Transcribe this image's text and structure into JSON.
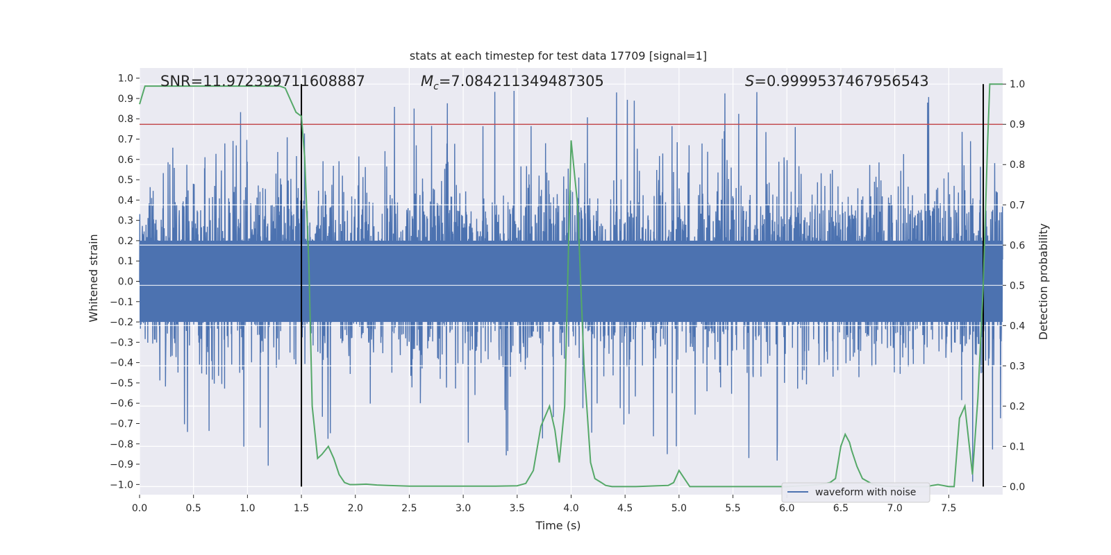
{
  "chart_data": {
    "type": "line",
    "title": "stats at each timestep for test data 17709 [signal=1]",
    "xlabel": "Time (s)",
    "ylabel": "Whitened strain",
    "y2label": "Detection probability",
    "xlim": [
      0.0,
      8.0
    ],
    "ylim": [
      -1.05,
      1.05
    ],
    "y2lim": [
      -0.02,
      1.04
    ],
    "xticks": [
      0.0,
      0.5,
      1.0,
      1.5,
      2.0,
      2.5,
      3.0,
      3.5,
      4.0,
      4.5,
      5.0,
      5.5,
      6.0,
      6.5,
      7.0,
      7.5
    ],
    "xtick_labels": [
      "0.0",
      "0.5",
      "1.0",
      "1.5",
      "2.0",
      "2.5",
      "3.0",
      "3.5",
      "4.0",
      "4.5",
      "5.0",
      "5.5",
      "6.0",
      "6.5",
      "7.0",
      "7.5"
    ],
    "yticks": [
      1.0,
      0.9,
      0.8,
      0.7,
      0.6,
      0.5,
      0.4,
      0.3,
      0.2,
      0.1,
      0.0,
      -0.1,
      -0.2,
      -0.3,
      -0.4,
      -0.5,
      -0.6,
      -0.7,
      -0.8,
      -0.9,
      -1.0
    ],
    "ytick_labels": [
      "1.0",
      "0.9",
      "0.8",
      "0.7",
      "0.6",
      "0.5",
      "0.4",
      "0.3",
      "0.2",
      "0.1",
      "0.0",
      "−0.1",
      "−0.2",
      "−0.3",
      "−0.4",
      "−0.5",
      "−0.6",
      "−0.7",
      "−0.8",
      "−0.9",
      "−1.0"
    ],
    "y2ticks": [
      1.0,
      0.9,
      0.8,
      0.7,
      0.6,
      0.5,
      0.4,
      0.3,
      0.2,
      0.1,
      0.0
    ],
    "y2tick_labels": [
      "1.0",
      "0.9",
      "0.8",
      "0.7",
      "0.6",
      "0.5",
      "0.4",
      "0.3",
      "0.2",
      "0.1",
      "0.0"
    ],
    "annotations": {
      "snr": "SNR=11.972399711608887",
      "mc_symbol": "M",
      "mc_sub": "c",
      "mc_value": "=7.084211349487305",
      "s_symbol": "S",
      "s_value": "=0.9999537467956543"
    },
    "legend": {
      "label": "waveform with noise",
      "location": "lower-right"
    },
    "threshold": 0.9,
    "vlines": [
      1.5,
      7.82
    ],
    "waveform": {
      "name": "waveform with noise",
      "color": "#4c72b0",
      "duration": 8.0,
      "typical_envelope": [
        -0.4,
        0.5
      ],
      "peak_max": 0.96,
      "peak_min": -1.0
    },
    "probability": {
      "name": "detection probability",
      "color": "#55a868",
      "t": [
        0.0,
        0.05,
        0.1,
        0.2,
        0.3,
        0.5,
        0.7,
        0.9,
        1.0,
        1.1,
        1.2,
        1.3,
        1.35,
        1.4,
        1.45,
        1.5,
        1.53,
        1.57,
        1.6,
        1.65,
        1.69,
        1.75,
        1.8,
        1.85,
        1.9,
        1.95,
        2.0,
        2.1,
        2.2,
        2.3,
        2.5,
        2.7,
        3.0,
        3.3,
        3.5,
        3.58,
        3.65,
        3.72,
        3.8,
        3.85,
        3.89,
        3.94,
        4.0,
        4.06,
        4.12,
        4.18,
        4.22,
        4.28,
        4.32,
        4.38,
        4.45,
        4.6,
        4.8,
        4.9,
        4.95,
        5.0,
        5.05,
        5.1,
        5.15,
        5.3,
        5.6,
        5.8,
        6.0,
        6.2,
        6.3,
        6.4,
        6.45,
        6.5,
        6.54,
        6.58,
        6.6,
        6.65,
        6.7,
        6.8,
        6.9,
        7.1,
        7.3,
        7.35,
        7.4,
        7.5,
        7.55,
        7.6,
        7.65,
        7.72,
        7.77,
        7.82,
        7.86,
        7.88,
        7.95,
        8.0
      ],
      "p": [
        0.95,
        0.995,
        0.995,
        0.995,
        0.995,
        0.995,
        0.995,
        0.995,
        0.995,
        0.995,
        0.995,
        0.995,
        0.99,
        0.96,
        0.93,
        0.92,
        0.82,
        0.55,
        0.2,
        0.07,
        0.08,
        0.1,
        0.07,
        0.03,
        0.01,
        0.005,
        0.005,
        0.006,
        0.004,
        0.003,
        0.001,
        0.001,
        0.001,
        0.001,
        0.002,
        0.008,
        0.04,
        0.15,
        0.2,
        0.14,
        0.06,
        0.2,
        0.86,
        0.7,
        0.3,
        0.06,
        0.02,
        0.01,
        0.003,
        0.0,
        0.0,
        0.0,
        0.002,
        0.003,
        0.01,
        0.04,
        0.02,
        0.0,
        0.0,
        0.0,
        0.0,
        0.0,
        0.0,
        0.003,
        0.005,
        0.01,
        0.02,
        0.1,
        0.13,
        0.11,
        0.09,
        0.05,
        0.02,
        0.005,
        0.001,
        0.0,
        0.0,
        0.003,
        0.005,
        0.0,
        0.0,
        0.17,
        0.2,
        0.03,
        0.22,
        0.5,
        0.85,
        1.0,
        1.0,
        1.0
      ]
    }
  }
}
